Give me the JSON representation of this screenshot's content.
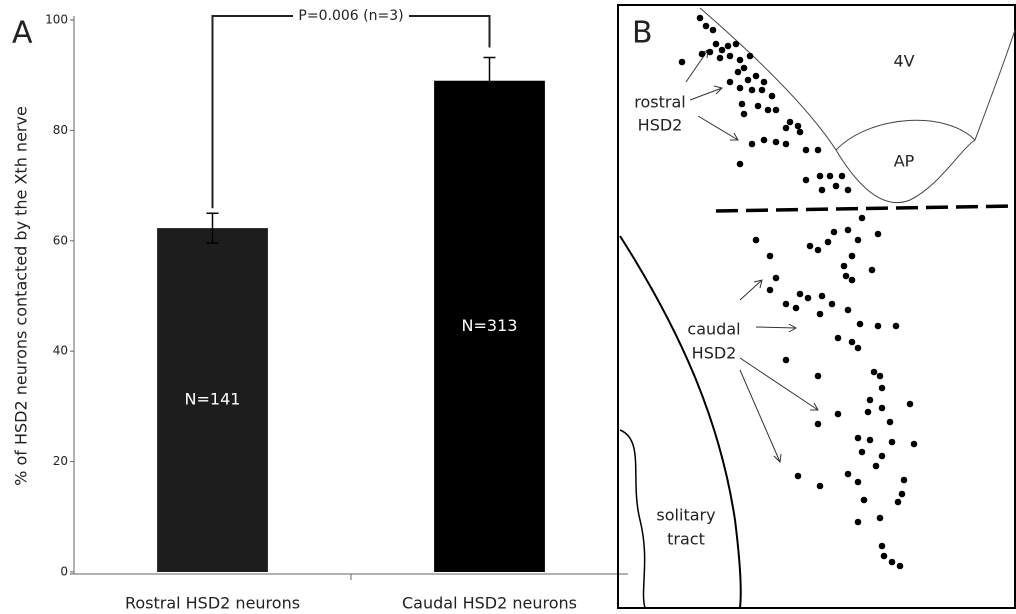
{
  "chart_data": {
    "type": "bar",
    "panel_label": "A",
    "ylabel": "% of HSD2 neurons contacted by the Xth nerve",
    "categories": [
      "Rostral HSD2 neurons",
      "Caudal HSD2 neurons"
    ],
    "values": [
      62.3,
      89
    ],
    "errors": [
      2.7,
      4.2
    ],
    "colors": [
      "#1d1d1d",
      "#000000"
    ],
    "bar_annotations": [
      "N=141",
      "N=313"
    ],
    "bracket_label": "P=0.006 (n=3)",
    "ylim": [
      0,
      100
    ],
    "yticks": [
      0,
      20,
      40,
      60,
      80,
      100
    ]
  },
  "panel_b": {
    "panel_label": "B",
    "labels": {
      "ventricle": "4V",
      "area_postrema": "AP",
      "rostral": [
        "rostral",
        "HSD2"
      ],
      "caudal": [
        "caudal",
        "HSD2"
      ],
      "tract": [
        "solitary",
        "tract"
      ]
    }
  }
}
